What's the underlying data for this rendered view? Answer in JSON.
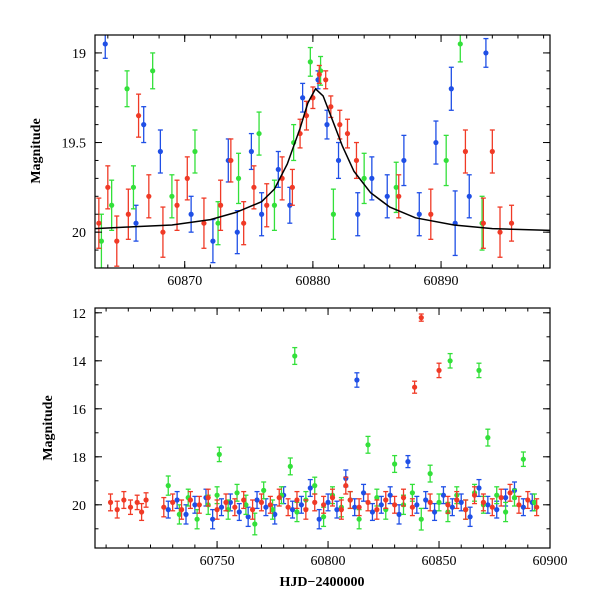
{
  "colors": {
    "blue": "#1f4fe6",
    "green": "#33e03a",
    "red": "#f03a26",
    "model": "#000000"
  },
  "chart_data": [
    {
      "type": "scatter",
      "title": "",
      "xlabel": "",
      "ylabel": "Magnitude",
      "xlim": [
        60863,
        60898.5
      ],
      "ylim": [
        20.2,
        18.9
      ],
      "y_inverted": true,
      "xticks": [
        60870,
        60880,
        60890
      ],
      "xtick_labels": [
        "60870",
        "60880",
        "60890"
      ],
      "yticks": [
        19,
        19.5,
        20
      ],
      "ytick_labels": [
        "19",
        "19.5",
        "20"
      ],
      "grid": false,
      "legend": "none",
      "model_curve": {
        "type": "line",
        "color": "model",
        "description": "peaked light-curve fit",
        "x": [
          60863,
          60866,
          60869,
          60872,
          60874,
          60876,
          60877,
          60878,
          60879,
          60879.6,
          60880.2,
          60880.8,
          60881.5,
          60882.3,
          60883.2,
          60884.5,
          60886,
          60888,
          60891,
          60894,
          60898.5
        ],
        "y": [
          19.98,
          19.97,
          19.96,
          19.93,
          19.89,
          19.83,
          19.76,
          19.62,
          19.42,
          19.28,
          19.2,
          19.24,
          19.37,
          19.52,
          19.66,
          19.78,
          19.86,
          19.92,
          19.96,
          19.98,
          19.99
        ]
      },
      "series": [
        {
          "color": "blue",
          "x": [
            60863.8,
            60866.2,
            60866.8,
            60868.1,
            60870.5,
            60872.2,
            60873.4,
            60874.1,
            60875.2,
            60876.0,
            60877.3,
            60878.2,
            60879.2,
            60880.4,
            60881.1,
            60882.0,
            60883.5,
            60884.6,
            60885.8,
            60887.1,
            60888.3,
            60889.6,
            60890.8,
            60891.1,
            60892.2,
            60893.5
          ],
          "y": [
            18.95,
            19.95,
            19.4,
            19.55,
            19.9,
            20.05,
            19.6,
            20.0,
            19.55,
            19.9,
            19.65,
            19.85,
            19.25,
            19.15,
            19.4,
            19.6,
            19.9,
            19.7,
            19.8,
            19.6,
            19.9,
            19.5,
            19.2,
            19.95,
            19.8,
            19.0
          ],
          "err": [
            0.08,
            0.1,
            0.1,
            0.12,
            0.1,
            0.12,
            0.12,
            0.12,
            0.1,
            0.12,
            0.1,
            0.1,
            0.08,
            0.05,
            0.08,
            0.1,
            0.12,
            0.12,
            0.12,
            0.14,
            0.12,
            0.12,
            0.12,
            0.18,
            0.12,
            0.08
          ]
        },
        {
          "color": "green",
          "x": [
            60863.5,
            60864.3,
            60865.5,
            60866.0,
            60867.5,
            60869.0,
            60870.8,
            60872.6,
            60874.2,
            60875.8,
            60877.0,
            60878.5,
            60879.8,
            60880.6,
            60881.6,
            60884.0,
            60886.5,
            60890.4,
            60891.5,
            60893.2
          ],
          "y": [
            20.05,
            19.85,
            19.2,
            19.75,
            19.1,
            19.8,
            19.55,
            19.95,
            19.7,
            19.45,
            19.85,
            19.5,
            19.05,
            19.1,
            19.9,
            19.7,
            19.75,
            19.6,
            18.95,
            19.95
          ],
          "err": [
            0.15,
            0.14,
            0.1,
            0.12,
            0.1,
            0.12,
            0.12,
            0.12,
            0.14,
            0.12,
            0.14,
            0.1,
            0.08,
            0.08,
            0.14,
            0.14,
            0.14,
            0.14,
            0.1,
            0.15
          ]
        },
        {
          "color": "red",
          "x": [
            60863.3,
            60864.0,
            60864.7,
            60865.6,
            60866.4,
            60867.2,
            60868.3,
            60869.4,
            60870.2,
            60871.5,
            60872.8,
            60873.6,
            60874.6,
            60875.4,
            60876.4,
            60877.6,
            60878.4,
            60879.0,
            60879.5,
            60880.0,
            60880.5,
            60881.0,
            60881.4,
            60882.1,
            60882.7,
            60883.4,
            60886.7,
            60889.2,
            60891.9,
            60893.3,
            60894.0,
            60894.6,
            60895.5
          ],
          "y": [
            19.95,
            19.75,
            20.05,
            19.9,
            19.35,
            19.8,
            20.0,
            19.85,
            19.7,
            19.95,
            19.85,
            19.6,
            19.95,
            19.75,
            19.85,
            19.7,
            19.75,
            19.45,
            19.35,
            19.25,
            19.12,
            19.15,
            19.3,
            19.4,
            19.45,
            19.6,
            19.8,
            19.9,
            19.55,
            19.95,
            19.55,
            20.0,
            19.95
          ],
          "err": [
            0.14,
            0.12,
            0.14,
            0.14,
            0.12,
            0.12,
            0.14,
            0.14,
            0.12,
            0.14,
            0.14,
            0.12,
            0.12,
            0.12,
            0.12,
            0.12,
            0.1,
            0.08,
            0.08,
            0.06,
            0.05,
            0.05,
            0.06,
            0.08,
            0.08,
            0.1,
            0.12,
            0.14,
            0.12,
            0.14,
            0.12,
            0.14,
            0.1
          ]
        }
      ]
    },
    {
      "type": "scatter",
      "title": "",
      "xlabel": "HJD−2400000",
      "ylabel": "Magnitude",
      "xlim": [
        60695,
        60900
      ],
      "ylim": [
        21.8,
        11.8
      ],
      "y_inverted": true,
      "xticks": [
        60750,
        60800,
        60850,
        60900
      ],
      "xtick_labels": [
        "60750",
        "60800",
        "60850",
        "60900"
      ],
      "yticks": [
        12,
        14,
        16,
        18,
        20
      ],
      "ytick_labels": [
        "12",
        "14",
        "16",
        "18",
        "20"
      ],
      "grid": false,
      "legend": "none",
      "series": [
        {
          "color": "blue",
          "x": [
            60728,
            60732,
            60736,
            60740,
            60745,
            60748,
            60752,
            60756,
            60760,
            60764,
            60768,
            60772,
            60776,
            60780,
            60784,
            60788,
            60792,
            60796,
            60800,
            60804,
            60808,
            60812,
            60813,
            60816,
            60820,
            60824,
            60828,
            60832,
            60836,
            60840,
            60844,
            60848,
            60852,
            60856,
            60860,
            60864,
            60868,
            60872,
            60876,
            60880,
            60884,
            60888,
            60892
          ],
          "y": [
            20.2,
            19.8,
            20.4,
            20.0,
            19.7,
            20.6,
            20.1,
            19.9,
            20.3,
            20.5,
            19.8,
            20.1,
            20.4,
            19.6,
            20.2,
            20.0,
            19.3,
            20.6,
            19.9,
            20.2,
            18.9,
            20.1,
            14.8,
            19.5,
            20.3,
            20.0,
            19.6,
            20.4,
            18.2,
            20.0,
            19.8,
            20.3,
            19.6,
            20.1,
            19.9,
            20.5,
            19.3,
            20.0,
            20.2,
            19.7,
            19.4,
            20.1,
            19.9
          ],
          "err": [
            0.35,
            0.35,
            0.4,
            0.35,
            0.35,
            0.4,
            0.35,
            0.35,
            0.35,
            0.4,
            0.35,
            0.35,
            0.4,
            0.35,
            0.35,
            0.35,
            0.35,
            0.4,
            0.35,
            0.35,
            0.35,
            0.35,
            0.3,
            0.35,
            0.35,
            0.35,
            0.35,
            0.4,
            0.25,
            0.35,
            0.35,
            0.35,
            0.35,
            0.35,
            0.35,
            0.4,
            0.35,
            0.35,
            0.35,
            0.35,
            0.35,
            0.35,
            0.35
          ]
        },
        {
          "color": "green",
          "x": [
            60728,
            60733,
            60737,
            60741,
            60746,
            60750,
            60751,
            60755,
            60759,
            60763,
            60767,
            60771,
            60775,
            60779,
            60783,
            60785,
            60786,
            60790,
            60794,
            60798,
            60802,
            60806,
            60810,
            60814,
            60818,
            60822,
            60826,
            60830,
            60834,
            60838,
            60842,
            60846,
            60850,
            60854,
            60855,
            60858,
            60862,
            60866,
            60868,
            60870,
            60872,
            60876,
            60880,
            60884,
            60888,
            60893
          ],
          "y": [
            19.2,
            20.4,
            19.7,
            20.6,
            20.0,
            19.6,
            17.9,
            20.2,
            19.5,
            20.0,
            20.8,
            19.4,
            20.2,
            19.6,
            18.4,
            13.8,
            20.3,
            19.8,
            19.2,
            20.5,
            19.6,
            20.1,
            19.8,
            20.6,
            17.5,
            19.7,
            20.2,
            18.3,
            20.0,
            19.5,
            20.6,
            18.7,
            19.9,
            20.3,
            14.0,
            19.6,
            20.2,
            19.5,
            14.4,
            20.0,
            17.2,
            19.6,
            20.3,
            19.7,
            18.1,
            19.9
          ],
          "err": [
            0.4,
            0.4,
            0.35,
            0.4,
            0.4,
            0.35,
            0.3,
            0.4,
            0.35,
            0.4,
            0.45,
            0.35,
            0.4,
            0.35,
            0.35,
            0.35,
            0.4,
            0.35,
            0.35,
            0.4,
            0.35,
            0.4,
            0.35,
            0.4,
            0.35,
            0.35,
            0.4,
            0.35,
            0.4,
            0.35,
            0.45,
            0.35,
            0.35,
            0.4,
            0.3,
            0.35,
            0.4,
            0.35,
            0.3,
            0.35,
            0.35,
            0.35,
            0.4,
            0.35,
            0.3,
            0.35
          ]
        },
        {
          "color": "red",
          "x": [
            60702,
            60705,
            60708,
            60711,
            60714,
            60716,
            60718,
            60726,
            60730,
            60734,
            60738,
            60742,
            60746,
            60750,
            60754,
            60758,
            60762,
            60766,
            60770,
            60774,
            60778,
            60782,
            60786,
            60790,
            60794,
            60798,
            60802,
            60806,
            60808,
            60810,
            60814,
            60818,
            60822,
            60826,
            60830,
            60834,
            60838,
            60839,
            60842,
            60846,
            60850,
            60854,
            60858,
            60862,
            60866,
            60870,
            60874,
            60878,
            60882,
            60886,
            60890,
            60894
          ],
          "y": [
            19.9,
            20.2,
            19.8,
            20.1,
            19.9,
            20.3,
            19.8,
            20.1,
            19.9,
            20.2,
            19.8,
            20.0,
            19.7,
            20.2,
            19.9,
            20.1,
            19.8,
            20.2,
            19.9,
            20.0,
            19.7,
            20.1,
            19.8,
            20.2,
            19.9,
            20.0,
            19.7,
            20.2,
            19.2,
            19.8,
            20.1,
            19.9,
            20.2,
            19.8,
            20.0,
            19.7,
            20.1,
            15.1,
            12.2,
            19.9,
            14.4,
            20.0,
            19.8,
            20.2,
            19.6,
            19.9,
            20.1,
            19.7,
            19.5,
            20.0,
            19.8,
            20.1
          ],
          "err": [
            0.35,
            0.35,
            0.35,
            0.3,
            0.3,
            0.35,
            0.3,
            0.4,
            0.35,
            0.4,
            0.35,
            0.35,
            0.35,
            0.4,
            0.35,
            0.35,
            0.35,
            0.4,
            0.35,
            0.35,
            0.35,
            0.35,
            0.35,
            0.4,
            0.35,
            0.35,
            0.35,
            0.4,
            0.35,
            0.35,
            0.35,
            0.35,
            0.4,
            0.35,
            0.35,
            0.35,
            0.35,
            0.25,
            0.15,
            0.35,
            0.3,
            0.35,
            0.35,
            0.4,
            0.35,
            0.35,
            0.35,
            0.35,
            0.35,
            0.35,
            0.35,
            0.35
          ]
        }
      ]
    }
  ]
}
